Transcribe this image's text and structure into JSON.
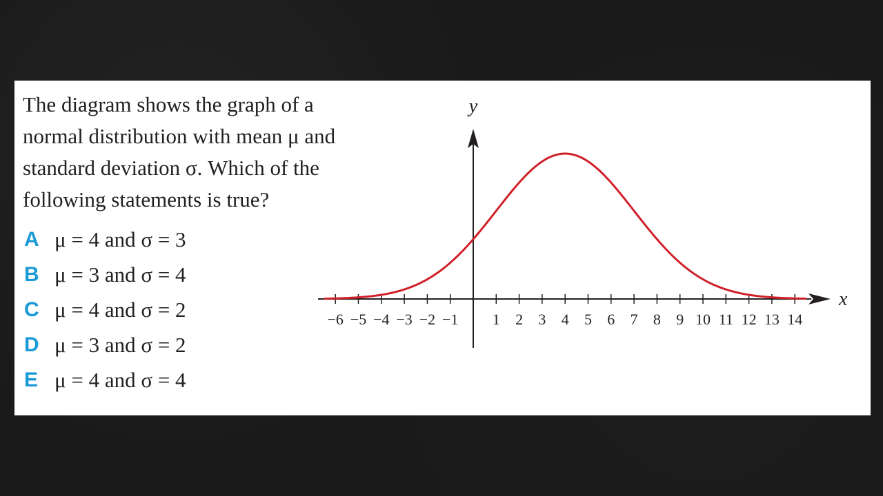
{
  "question": {
    "lines": [
      "The diagram shows the graph of a",
      "normal distribution with mean μ and",
      "standard deviation σ. Which of the",
      "following statements is true?"
    ]
  },
  "options": [
    {
      "letter": "A",
      "text": "μ = 4 and σ = 3"
    },
    {
      "letter": "B",
      "text": "μ = 3 and σ = 4"
    },
    {
      "letter": "C",
      "text": "μ = 4 and σ = 2"
    },
    {
      "letter": "D",
      "text": "μ = 3 and σ = 2"
    },
    {
      "letter": "E",
      "text": "μ = 4 and σ = 4"
    }
  ],
  "colors": {
    "curve": "#d0202a",
    "option_letter": "#1a9ad6",
    "text": "#231f20"
  },
  "chart_data": {
    "type": "line",
    "xlabel": "x",
    "ylabel": "y",
    "xlim": [
      -6,
      14
    ],
    "x_ticks": [
      -6,
      -5,
      -4,
      -3,
      -2,
      -1,
      1,
      2,
      3,
      4,
      5,
      6,
      7,
      8,
      9,
      10,
      11,
      12,
      13,
      14
    ],
    "x_tick_labels": [
      "−6",
      "−5",
      "−4",
      "−3",
      "−2",
      "−1",
      "1",
      "2",
      "3",
      "4",
      "5",
      "6",
      "7",
      "8",
      "9",
      "10",
      "11",
      "12",
      "13",
      "14"
    ],
    "series": [
      {
        "curve": "normal",
        "mean": 4,
        "sd": 3,
        "x": [
          -6,
          -5,
          -4,
          -3,
          -2,
          -1,
          0,
          1,
          2,
          3,
          4,
          5,
          6,
          7,
          8,
          9,
          10,
          11,
          12,
          13,
          14
        ],
        "y": [
          0.0005,
          0.0015,
          0.0038,
          0.0087,
          0.018,
          0.0332,
          0.0547,
          0.0807,
          0.1065,
          0.1258,
          0.133,
          0.1258,
          0.1065,
          0.0807,
          0.0547,
          0.0332,
          0.018,
          0.0087,
          0.0038,
          0.0015,
          0.0005
        ]
      }
    ],
    "grid": false,
    "legend": "none"
  }
}
